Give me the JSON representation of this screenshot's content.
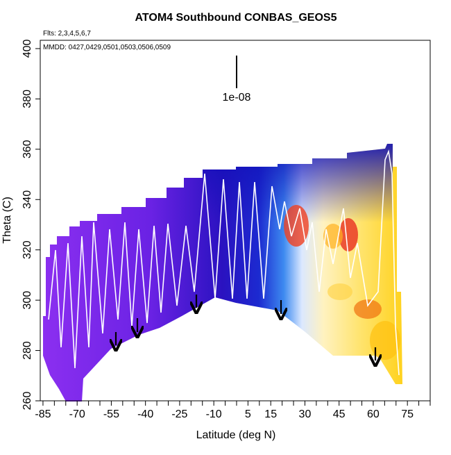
{
  "chart_data": {
    "type": "heatmap",
    "title": "ATOM4 Southbound CONBAS_GEOS5",
    "flights_label": "Flts: 2,3,4,5,6,7",
    "dates_label": "MMDD: 0427,0429,0501,0503,0506,0509",
    "scale_label": "1e-08",
    "x_label": "Latitude (deg N)",
    "y_label": "Theta (C)",
    "xlim": [
      -86.2,
      85
    ],
    "xticks": [
      -85,
      -70,
      -55,
      -40,
      -25,
      -10,
      5,
      15,
      30,
      45,
      60,
      75
    ],
    "xticks_minor": [
      -80,
      -75,
      -65,
      -60,
      -50,
      -45,
      -35,
      -30,
      -20,
      -15,
      -5,
      0,
      10,
      20,
      25,
      35,
      40,
      50,
      55,
      65,
      70,
      80,
      85
    ],
    "ylim": [
      260,
      403.3
    ],
    "yticks": [
      260,
      280,
      300,
      320,
      340,
      360,
      380,
      400
    ]
  }
}
